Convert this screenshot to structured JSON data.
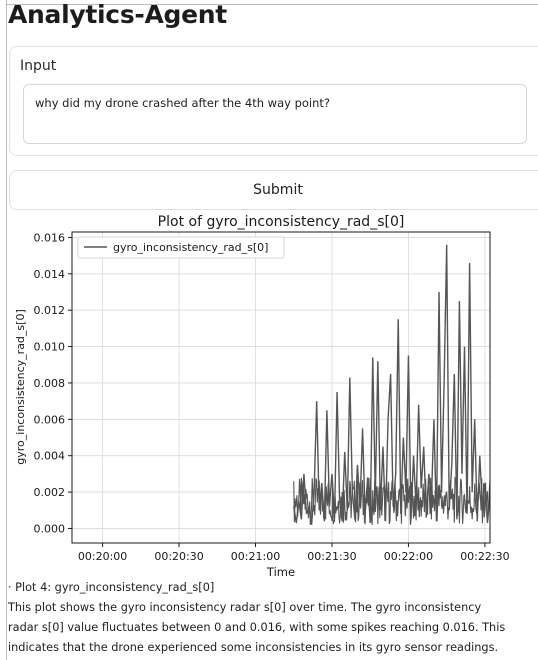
{
  "app": {
    "title": "Analytics-Agent"
  },
  "input": {
    "label": "Input",
    "value": "why did my drone crashed after the 4th way point?"
  },
  "submit": {
    "label": "Submit"
  },
  "chart_data": {
    "type": "line",
    "title": "Plot of gyro_inconsistency_rad_s[0]",
    "xlabel": "Time",
    "ylabel": "gyro_inconsistency_rad_s[0]",
    "legend": {
      "position": "top-left",
      "entries": [
        "gyro_inconsistency_rad_s[0]"
      ]
    },
    "grid": true,
    "x_tick_labels": [
      "00:20:00",
      "00:20:30",
      "00:21:00",
      "00:21:30",
      "00:22:00",
      "00:22:30"
    ],
    "xlim": [
      "00:19:48",
      "00:22:32"
    ],
    "ylim": [
      -0.0008,
      0.0163
    ],
    "y_tick_labels": [
      "0.000",
      "0.002",
      "0.004",
      "0.006",
      "0.008",
      "0.010",
      "0.012",
      "0.014",
      "0.016"
    ],
    "series": [
      {
        "name": "gyro_inconsistency_rad_s[0]",
        "color": "#555555",
        "points": [
          [
            "00:21:15",
            0.0012
          ],
          [
            "00:21:16",
            0.0003
          ],
          [
            "00:21:17",
            0.0015
          ],
          [
            "00:21:18",
            0.0005
          ],
          [
            "00:21:19",
            0.003
          ],
          [
            "00:21:20",
            0.0008
          ],
          [
            "00:21:21",
            0.0012
          ],
          [
            "00:21:22",
            0.0002
          ],
          [
            "00:21:23",
            0.002
          ],
          [
            "00:21:24",
            0.007
          ],
          [
            "00:21:25",
            0.001
          ],
          [
            "00:21:26",
            0.0025
          ],
          [
            "00:21:27",
            0.0004
          ],
          [
            "00:21:28",
            0.0065
          ],
          [
            "00:21:29",
            0.0012
          ],
          [
            "00:21:30",
            0.003
          ],
          [
            "00:21:31",
            0.0006
          ],
          [
            "00:21:32",
            0.0075
          ],
          [
            "00:21:33",
            0.0015
          ],
          [
            "00:21:34",
            0.0004
          ],
          [
            "00:21:35",
            0.0042
          ],
          [
            "00:21:36",
            0.001
          ],
          [
            "00:21:37",
            0.0083
          ],
          [
            "00:21:38",
            0.002
          ],
          [
            "00:21:39",
            0.0005
          ],
          [
            "00:21:40",
            0.0035
          ],
          [
            "00:21:41",
            0.0012
          ],
          [
            "00:21:42",
            0.0055
          ],
          [
            "00:21:43",
            0.0008
          ],
          [
            "00:21:44",
            0.0028
          ],
          [
            "00:21:45",
            0.0003
          ],
          [
            "00:21:46",
            0.0094
          ],
          [
            "00:21:47",
            0.0018
          ],
          [
            "00:21:48",
            0.0092
          ],
          [
            "00:21:49",
            0.001
          ],
          [
            "00:21:50",
            0.0045
          ],
          [
            "00:21:51",
            0.0004
          ],
          [
            "00:21:52",
            0.006
          ],
          [
            "00:21:53",
            0.0085
          ],
          [
            "00:21:54",
            0.0012
          ],
          [
            "00:21:55",
            0.003
          ],
          [
            "00:21:56",
            0.0115
          ],
          [
            "00:21:57",
            0.0008
          ],
          [
            "00:21:58",
            0.005
          ],
          [
            "00:21:59",
            0.002
          ],
          [
            "00:22:00",
            0.0095
          ],
          [
            "00:22:01",
            0.0005
          ],
          [
            "00:22:02",
            0.004
          ],
          [
            "00:22:03",
            0.0012
          ],
          [
            "00:22:04",
            0.0068
          ],
          [
            "00:22:05",
            0.0022
          ],
          [
            "00:22:06",
            0.0045
          ],
          [
            "00:22:07",
            0.0006
          ],
          [
            "00:22:08",
            0.003
          ],
          [
            "00:22:09",
            0.0015
          ],
          [
            "00:22:10",
            0.006
          ],
          [
            "00:22:11",
            0.0004
          ],
          [
            "00:22:12",
            0.013
          ],
          [
            "00:22:13",
            0.002
          ],
          [
            "00:22:14",
            0.008
          ],
          [
            "00:22:15",
            0.0156
          ],
          [
            "00:22:16",
            0.001
          ],
          [
            "00:22:17",
            0.0035
          ],
          [
            "00:22:18",
            0.0085
          ],
          [
            "00:22:19",
            0.0005
          ],
          [
            "00:22:20",
            0.0125
          ],
          [
            "00:22:21",
            0.003
          ],
          [
            "00:22:22",
            0.01
          ],
          [
            "00:22:23",
            0.0008
          ],
          [
            "00:22:24",
            0.0146
          ],
          [
            "00:22:25",
            0.002
          ],
          [
            "00:22:26",
            0.006
          ],
          [
            "00:22:27",
            0.0004
          ],
          [
            "00:22:28",
            0.004
          ],
          [
            "00:22:29",
            0.0012
          ],
          [
            "00:22:30",
            0.0025
          ],
          [
            "00:22:31",
            0.0003
          ],
          [
            "00:22:32",
            0.0018
          ]
        ],
        "noise_band": {
          "start": "00:21:15",
          "end": "00:22:32",
          "min": 0.0002,
          "max": 0.0028
        }
      }
    ]
  },
  "description": {
    "lines": [
      "· Plot 4: gyro_inconsistency_rad_s[0]",
      "  This plot shows the gyro inconsistency radar s[0] over time. The gyro inconsistency",
      "radar s[0] value fluctuates between 0 and 0.016, with some spikes reaching 0.016. This",
      "indicates that the drone experienced some inconsistencies in its gyro sensor readings."
    ]
  }
}
